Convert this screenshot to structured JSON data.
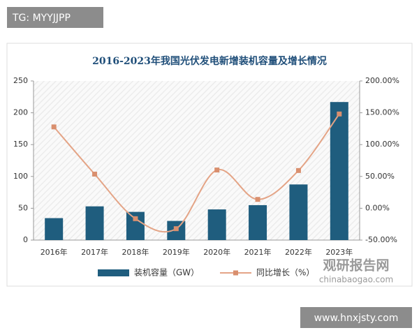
{
  "chart_data": {
    "type": "bar-line",
    "title": "2016-2023年我国光伏发电新增装机容量及增长情况",
    "categories": [
      "2016年",
      "2017年",
      "2018年",
      "2019年",
      "2020年",
      "2021年",
      "2022年",
      "2023年"
    ],
    "series": [
      {
        "name": "装机容量（GW）",
        "type": "bar",
        "color": "#1f5d7e",
        "values": [
          34.5,
          53,
          44.3,
          30.1,
          48.2,
          54.9,
          87.4,
          216.9
        ]
      },
      {
        "name": "同比增长（%）",
        "type": "line",
        "axis": "y2",
        "color": "#e4a486",
        "values": [
          127.8,
          53.6,
          -16.4,
          -32.1,
          60.1,
          13.9,
          59.3,
          148.1
        ]
      }
    ],
    "ylim": [
      0,
      250
    ],
    "yticks": [
      0,
      50,
      100,
      150,
      200,
      250
    ],
    "y2lim": [
      -50,
      200
    ],
    "y2ticks": [
      {
        "value": -50,
        "label": "-50.00%"
      },
      {
        "value": 0,
        "label": "0.00%"
      },
      {
        "value": 50,
        "label": "50.00%"
      },
      {
        "value": 100,
        "label": "100.00%"
      },
      {
        "value": 150,
        "label": "150.00%"
      },
      {
        "value": 200,
        "label": "200.00%"
      }
    ],
    "legend": "bottom"
  },
  "overlays": {
    "top_left": "TG: MYYJJPP",
    "bottom_right": "www.hnxjsty.com",
    "logo": "观研报告网",
    "logo_url": "chinabaogao.com"
  }
}
